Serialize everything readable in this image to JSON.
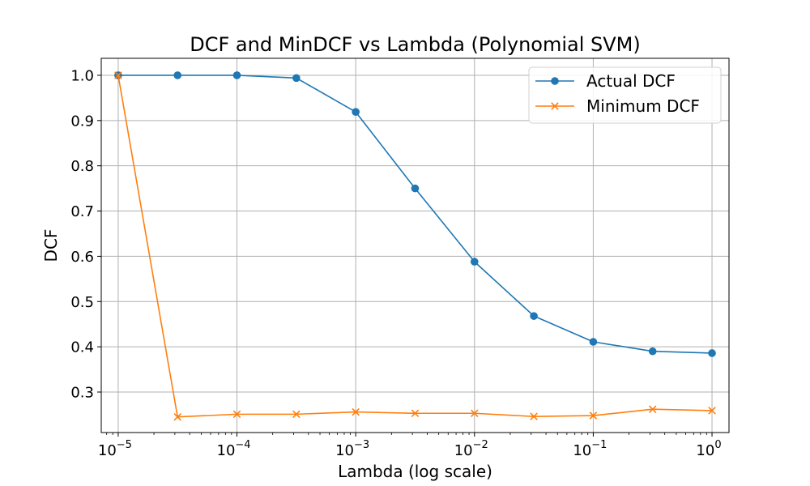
{
  "chart_data": {
    "type": "line",
    "title": "DCF and MinDCF vs Lambda (Polynomial SVM)",
    "xlabel": "Lambda (log scale)",
    "ylabel": "DCF",
    "xscale": "log",
    "xlim": [
      7.2e-06,
      1.39
    ],
    "ylim": [
      0.2105,
      1.0375
    ],
    "grid": true,
    "legend_position": "top-right",
    "x": [
      1e-05,
      3.162e-05,
      0.0001,
      0.0003162,
      0.001,
      0.003162,
      0.01,
      0.03162,
      0.1,
      0.3162,
      1
    ],
    "x_ticks": [
      {
        "value": 1e-05,
        "base": "10",
        "exp": "−5"
      },
      {
        "value": 0.0001,
        "base": "10",
        "exp": "−4"
      },
      {
        "value": 0.001,
        "base": "10",
        "exp": "−3"
      },
      {
        "value": 0.01,
        "base": "10",
        "exp": "−2"
      },
      {
        "value": 0.1,
        "base": "10",
        "exp": "−1"
      },
      {
        "value": 1,
        "base": "10",
        "exp": "0"
      }
    ],
    "y_ticks": [
      {
        "value": 0.3,
        "label": "0.3"
      },
      {
        "value": 0.4,
        "label": "0.4"
      },
      {
        "value": 0.5,
        "label": "0.5"
      },
      {
        "value": 0.6,
        "label": "0.6"
      },
      {
        "value": 0.7,
        "label": "0.7"
      },
      {
        "value": 0.8,
        "label": "0.8"
      },
      {
        "value": 0.9,
        "label": "0.9"
      },
      {
        "value": 1.0,
        "label": "1.0"
      }
    ],
    "series": [
      {
        "name": "Actual DCF",
        "color": "#1f77b4",
        "marker": "circle",
        "values": [
          1.0,
          1.0,
          1.0,
          0.994,
          0.919,
          0.75,
          0.588,
          0.468,
          0.411,
          0.39,
          0.386
        ]
      },
      {
        "name": "Minimum DCF",
        "color": "#ff7f0e",
        "marker": "x",
        "values": [
          1.0,
          0.245,
          0.251,
          0.251,
          0.256,
          0.253,
          0.253,
          0.246,
          0.248,
          0.262,
          0.259
        ]
      }
    ]
  }
}
